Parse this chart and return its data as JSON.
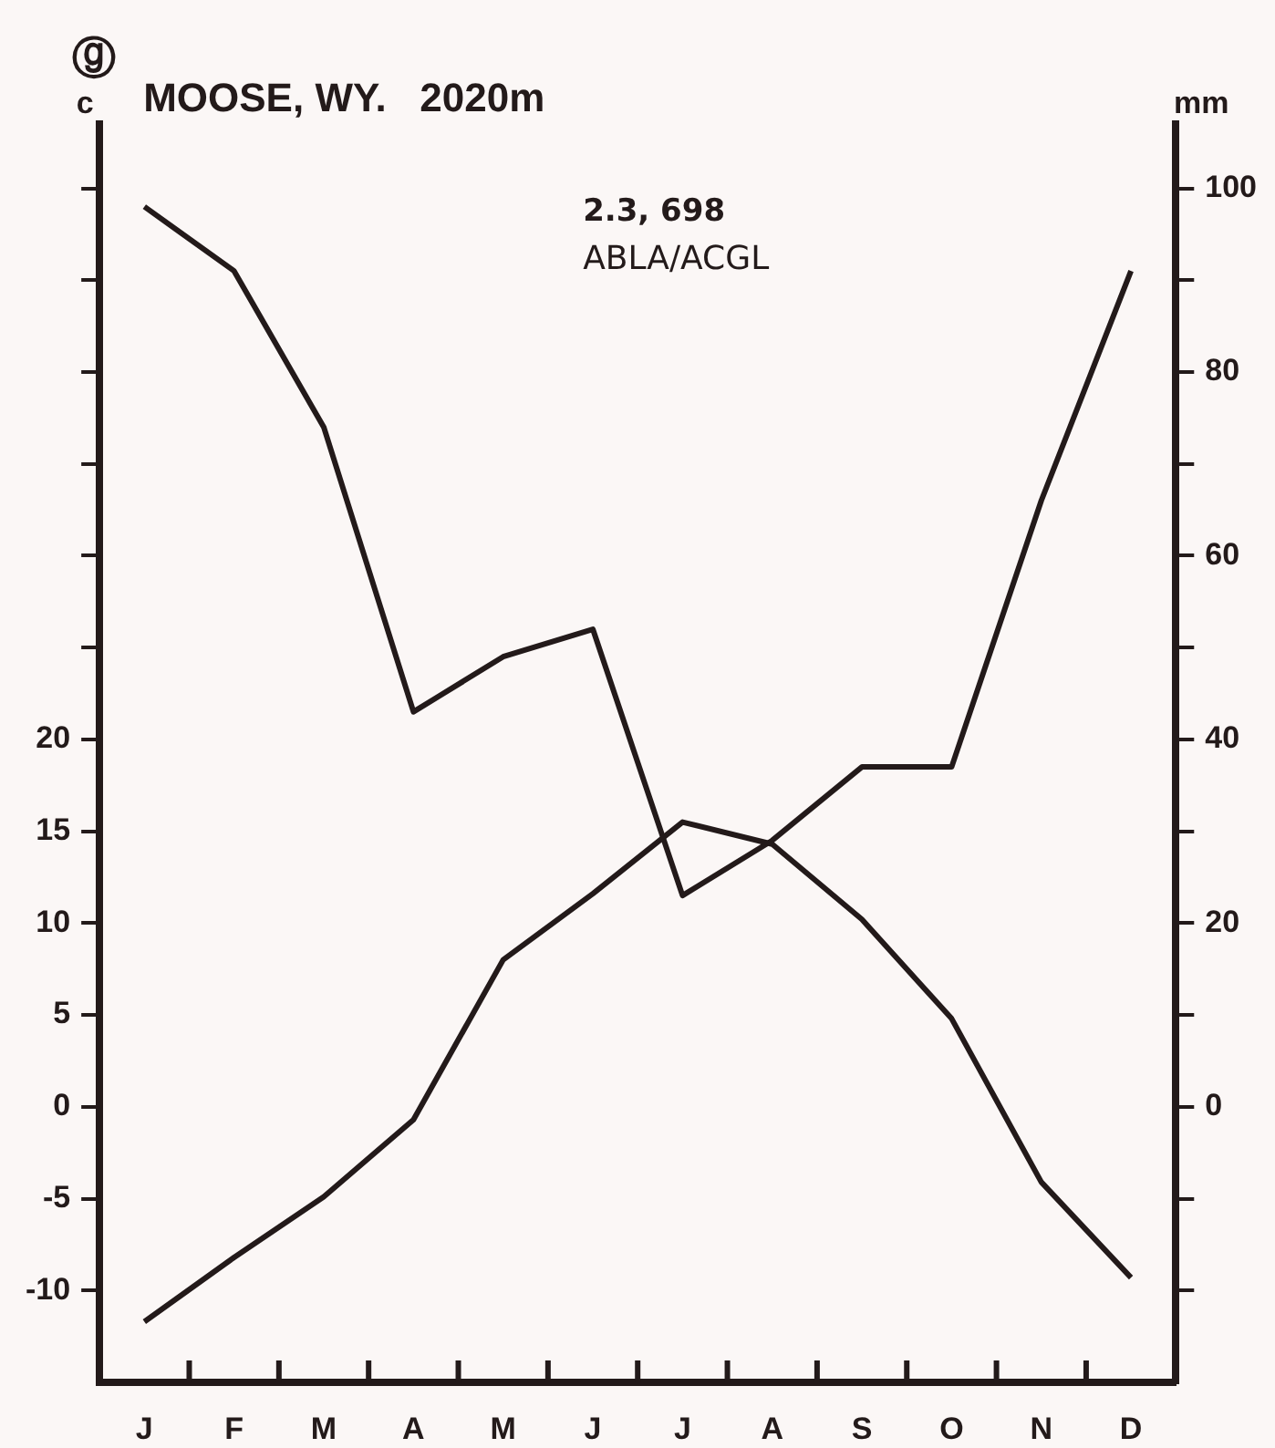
{
  "chart_data": {
    "type": "line",
    "title": "MOOSE, WY.   2020m",
    "ylabel": "c",
    "y2label": "mm",
    "annotations": [
      "ⓖ",
      "2.3, 698",
      "ABLA/ACGL"
    ],
    "categories": [
      "J",
      "F",
      "M",
      "A",
      "M",
      "J",
      "J",
      "A",
      "S",
      "O",
      "N",
      "D"
    ],
    "series": [
      {
        "color": "#231a1a",
        "values": [
          -11.7,
          -8.2,
          -4.9,
          -0.7,
          8.0,
          11.6,
          15.5,
          14.3,
          10.2,
          4.8,
          -4.1,
          -9.3
        ]
      },
      {
        "color": "#231a1a",
        "axis": "y2",
        "values": [
          98,
          91,
          74,
          43,
          49,
          52,
          23,
          29,
          37,
          37,
          66,
          91
        ]
      }
    ],
    "ylim": [
      -15,
      53.5
    ],
    "yticks": [
      -10,
      -5,
      0,
      5,
      10,
      15,
      20,
      {
        "value": 25,
        "label": null
      },
      {
        "value": 30,
        "label": null
      },
      {
        "value": 35,
        "label": null
      },
      {
        "value": 40,
        "label": null
      },
      {
        "value": 45,
        "label": null
      },
      {
        "value": 50,
        "label": null
      }
    ],
    "y2lim": [
      -30,
      107
    ],
    "y2ticks": [
      {
        "value": -20,
        "label": null
      },
      {
        "value": -10,
        "label": null
      },
      0,
      {
        "value": 10,
        "label": null
      },
      20,
      {
        "value": 30,
        "label": null
      },
      40,
      {
        "value": 50,
        "label": null
      },
      60,
      {
        "value": 70,
        "label": null
      },
      80,
      {
        "value": 90,
        "label": null
      },
      100
    ],
    "grid": false,
    "legend": false,
    "marker": "none",
    "line_style": "solid"
  }
}
